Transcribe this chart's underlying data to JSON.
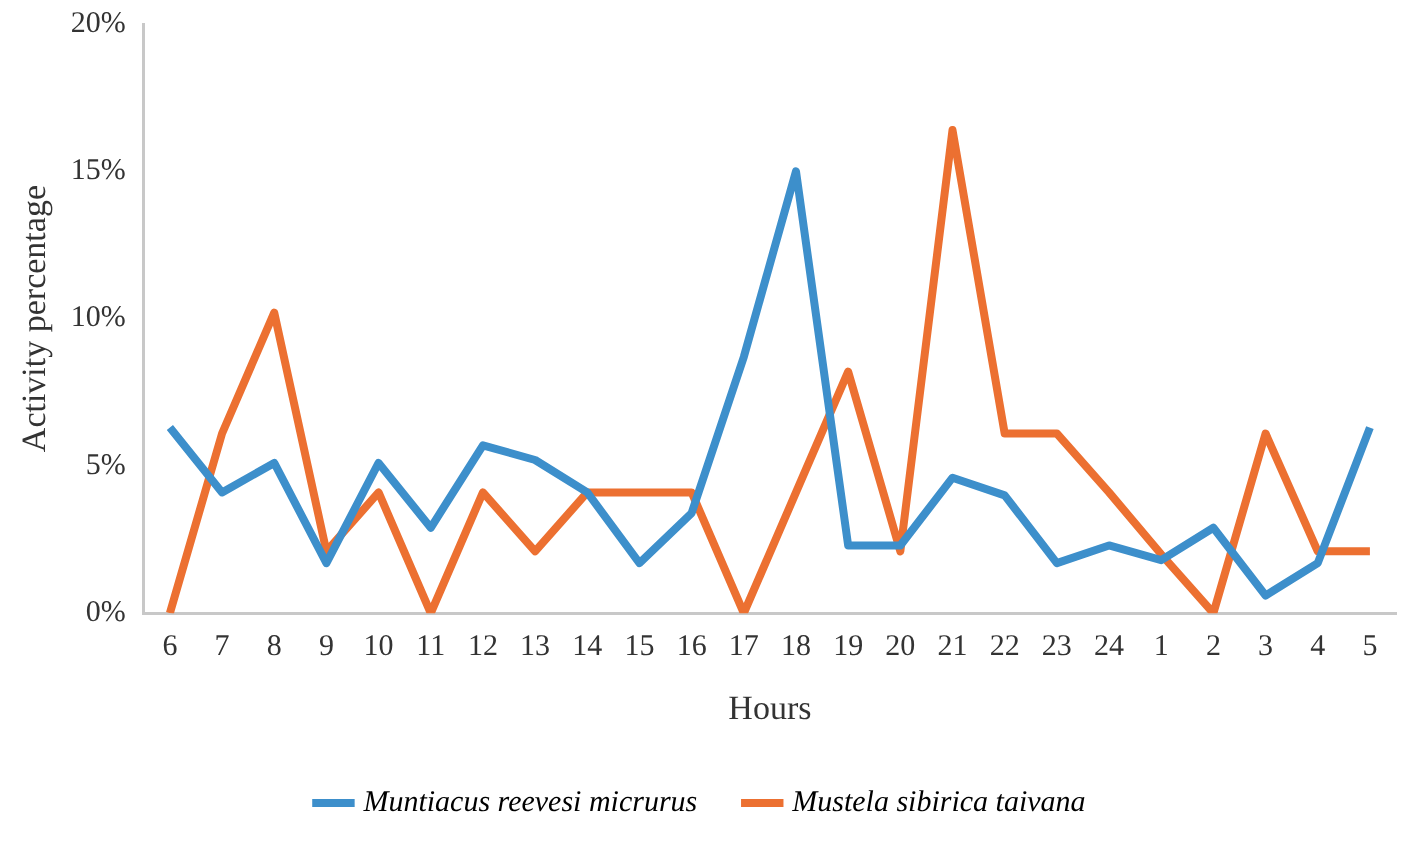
{
  "chart_data": {
    "type": "line",
    "xlabel": "Hours",
    "ylabel": "Activity percentage",
    "categories": [
      "6",
      "7",
      "8",
      "9",
      "10",
      "11",
      "12",
      "13",
      "14",
      "15",
      "16",
      "17",
      "18",
      "19",
      "20",
      "21",
      "22",
      "23",
      "24",
      "1",
      "2",
      "3",
      "4",
      "5"
    ],
    "series": [
      {
        "name": "Muntiacus reevesi micrurus",
        "color": "#3d8fcb",
        "values": [
          6.3,
          4.1,
          5.1,
          1.7,
          5.1,
          2.9,
          5.7,
          5.2,
          4.1,
          1.7,
          3.4,
          8.7,
          15.0,
          2.3,
          2.3,
          4.6,
          4.0,
          1.7,
          2.3,
          1.8,
          2.9,
          0.6,
          1.7,
          6.3
        ]
      },
      {
        "name": "Mustela sibirica taivana",
        "color": "#ec7031",
        "values": [
          0,
          6.1,
          10.2,
          2.1,
          4.1,
          0,
          4.1,
          2.1,
          4.1,
          4.1,
          4.1,
          0,
          4.1,
          8.2,
          2.1,
          16.4,
          6.1,
          6.1,
          4.1,
          2.0,
          0,
          6.1,
          2.1,
          2.1
        ]
      }
    ],
    "ylim": [
      0,
      20
    ],
    "yticks": [
      {
        "value": 0,
        "label": "0%"
      },
      {
        "value": 5,
        "label": "5%"
      },
      {
        "value": 10,
        "label": "10%"
      },
      {
        "value": 15,
        "label": "15%"
      },
      {
        "value": 20,
        "label": "20%"
      }
    ],
    "grid": false,
    "legend": "bottom",
    "marker": "none",
    "line_style": "solid"
  }
}
